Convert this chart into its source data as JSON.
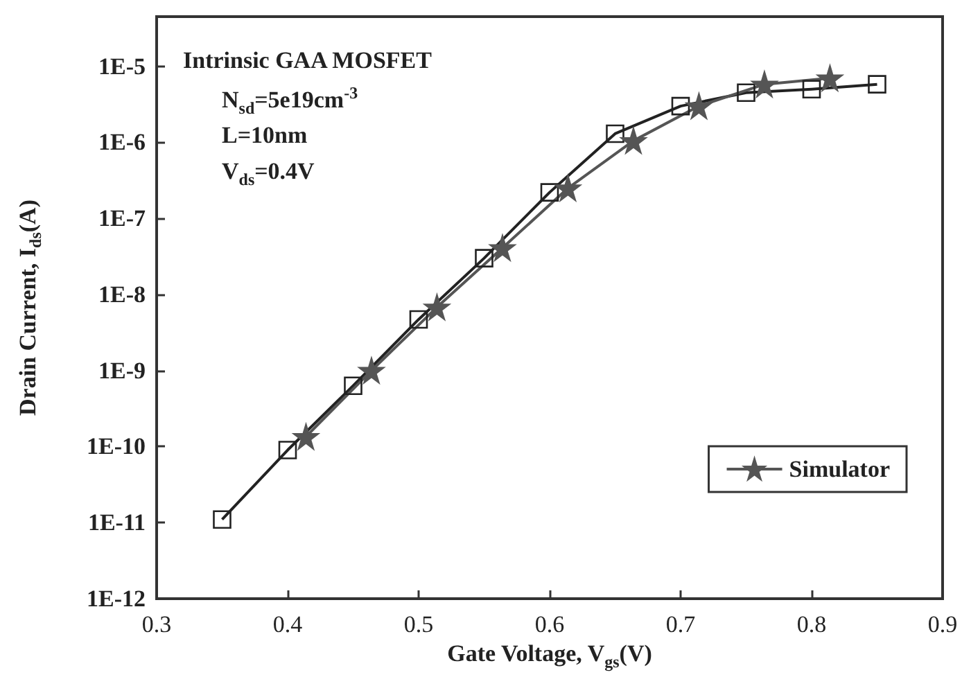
{
  "chart_data": {
    "type": "line",
    "xlabel": "Gate Voltage, V$_{gs}$(V)",
    "ylabel": "Drain Current, I$_{ds}$(A)",
    "annotations": [
      "Intrinsic GAA MOSFET",
      "N$_{sd}$=5e19cm$^{-3}$",
      "L=10nm",
      "V$_{ds}$=0.4V"
    ],
    "series": [
      {
        "color": "#222222",
        "marker": "square",
        "x": [
          0.35,
          0.4,
          0.45,
          0.5,
          0.55,
          0.6,
          0.65,
          0.7,
          0.75,
          0.8,
          0.85
        ],
        "values": [
          1.1e-11,
          9e-11,
          6.3e-10,
          4.7e-09,
          3e-08,
          2.2e-07,
          1.3e-06,
          3e-06,
          4.5e-06,
          5e-06,
          5.8e-06
        ]
      },
      {
        "name": "Simulator",
        "color": "#555555",
        "marker": "star",
        "x": [
          0.414,
          0.464,
          0.514,
          0.564,
          0.614,
          0.664,
          0.714,
          0.764,
          0.814
        ],
        "values": [
          1.35e-10,
          1e-09,
          6.8e-09,
          4.1e-08,
          2.5e-07,
          1.05e-06,
          3e-06,
          5.8e-06,
          7e-06
        ]
      }
    ],
    "xlim": [
      0.3,
      0.9
    ],
    "xticks": [
      0.3,
      0.4,
      0.5,
      0.6,
      0.7,
      0.8,
      0.9
    ],
    "ylim": [
      1e-12,
      4.5e-05
    ],
    "log": true,
    "yticks": [
      {
        "value": 1e-12,
        "label": "1E-12"
      },
      {
        "value": 1e-11,
        "label": "1E-11"
      },
      {
        "value": 1e-10,
        "label": "1E-10"
      },
      {
        "value": 1e-09,
        "label": "1E-9"
      },
      {
        "value": 1e-08,
        "label": "1E-8"
      },
      {
        "value": 1e-07,
        "label": "1E-7"
      },
      {
        "value": 1e-06,
        "label": "1E-6"
      },
      {
        "value": 1e-05,
        "label": "1E-5"
      }
    ],
    "grid": false,
    "legend": "bottom right",
    "line_style": "solid"
  }
}
